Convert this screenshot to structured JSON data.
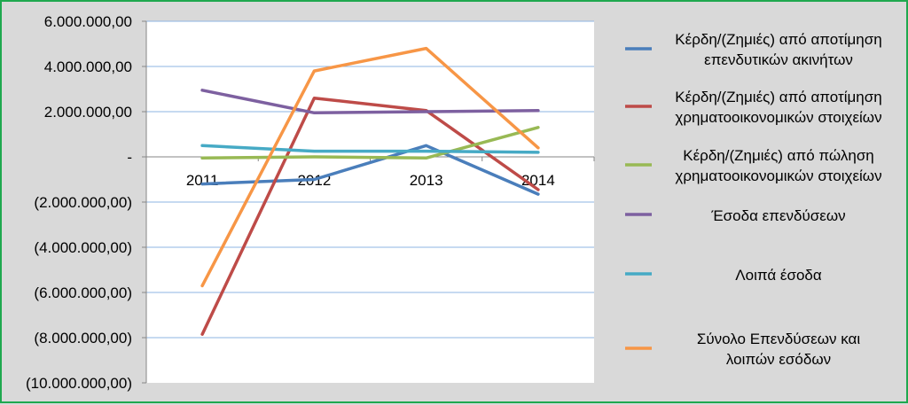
{
  "chart_data": {
    "type": "line",
    "title": "",
    "xlabel": "",
    "ylabel": "",
    "categories": [
      "2011",
      "2012",
      "2013",
      "2014"
    ],
    "ylim": [
      -10000000,
      6000000
    ],
    "ytick_values": [
      6000000,
      4000000,
      2000000,
      0,
      -2000000,
      -4000000,
      -6000000,
      -8000000,
      -10000000
    ],
    "ytick_labels": [
      "6.000.000,00",
      "4.000.000,00",
      "2.000.000,00",
      "-",
      "(2.000.000,00)",
      "(4.000.000,00)",
      "(6.000.000,00)",
      "(8.000.000,00)",
      "(10.000.000,00)"
    ],
    "grid": true,
    "legend_position": "right",
    "series": [
      {
        "name_lines": [
          "Κέρδη/(Ζημιές) από αποτίμηση",
          "επενδυτικών ακινήτων"
        ],
        "color": "#4a7ebb",
        "values": [
          -1200000,
          -1000000,
          500000,
          -1650000
        ]
      },
      {
        "name_lines": [
          "Κέρδη/(Ζημιές) από αποτίμηση",
          "χρηματοοικονομικών στοιχείων"
        ],
        "color": "#be4b48",
        "values": [
          -7850000,
          2600000,
          2050000,
          -1450000
        ]
      },
      {
        "name_lines": [
          "Κέρδη/(Ζημιές) από πώληση",
          "χρηματοοικονομικών στοιχείων"
        ],
        "color": "#98b954",
        "values": [
          -50000,
          0,
          -50000,
          1300000
        ]
      },
      {
        "name_lines": [
          "Έσοδα επενδύσεων"
        ],
        "color": "#7d60a0",
        "values": [
          2950000,
          1950000,
          2000000,
          2050000
        ]
      },
      {
        "name_lines": [
          "Λοιπά έσοδα"
        ],
        "color": "#46aac5",
        "values": [
          500000,
          250000,
          250000,
          200000
        ]
      },
      {
        "name_lines": [
          "Σύνολο Επενδύσεων και",
          "λοιπών εσόδων"
        ],
        "color": "#f79646",
        "values": [
          -5700000,
          3800000,
          4800000,
          400000
        ]
      }
    ]
  }
}
